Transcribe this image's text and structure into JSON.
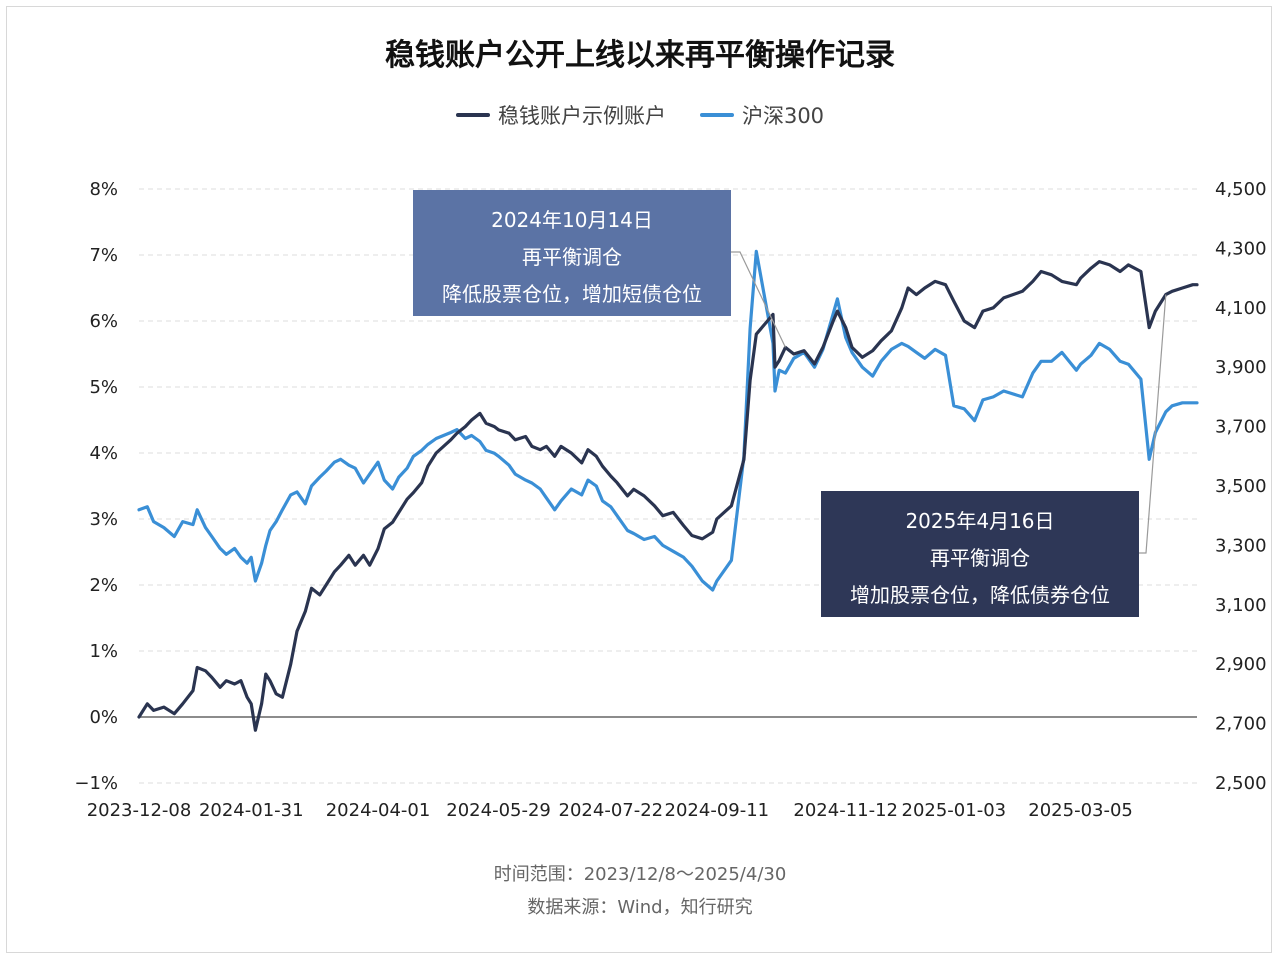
{
  "title": "稳钱账户公开上线以来再平衡操作记录",
  "footer": {
    "range": "时间范围：2023/12/8～2025/4/30",
    "source": "数据来源：Wind，知行研究"
  },
  "colors": {
    "account": "#2a3450",
    "csi300": "#3a8fd6",
    "callout1": "#5b73a5",
    "callout2": "#2e3757"
  },
  "annotations": [
    {
      "date": "2024年10月14日",
      "title": "再平衡调仓",
      "detail": "降低股票仓位，增加短债仓位"
    },
    {
      "date": "2025年4月16日",
      "title": "再平衡调仓",
      "detail": "增加股票仓位，降低债券仓位"
    }
  ],
  "chart_data": {
    "type": "line",
    "x_ticks": [
      "2023-12-08",
      "2024-01-31",
      "2024-04-01",
      "2024-05-29",
      "2024-07-22",
      "2024-09-11",
      "2024-11-12",
      "2025-01-03",
      "2025-03-05"
    ],
    "y_left_ticks": [
      "8%",
      "7%",
      "6%",
      "5%",
      "4%",
      "3%",
      "2%",
      "1%",
      "0%",
      "−1%"
    ],
    "y_right_ticks": [
      "4,500",
      "4,300",
      "4,100",
      "3,900",
      "3,700",
      "3,500",
      "3,300",
      "3,100",
      "2,900",
      "2,700",
      "2,500"
    ],
    "y_left_range": [
      -1,
      8
    ],
    "y_right_range": [
      2500,
      4500
    ],
    "grid": true,
    "legend_position": "top-center",
    "series": [
      {
        "name": "稳钱账户示例账户",
        "axis": "left",
        "unit": "%",
        "points": [
          [
            "2023-12-08",
            0.0
          ],
          [
            "2023-12-12",
            0.2
          ],
          [
            "2023-12-15",
            0.1
          ],
          [
            "2023-12-20",
            0.15
          ],
          [
            "2023-12-25",
            0.05
          ],
          [
            "2023-12-29",
            0.2
          ],
          [
            "2024-01-03",
            0.4
          ],
          [
            "2024-01-05",
            0.75
          ],
          [
            "2024-01-09",
            0.7
          ],
          [
            "2024-01-12",
            0.6
          ],
          [
            "2024-01-16",
            0.45
          ],
          [
            "2024-01-19",
            0.55
          ],
          [
            "2024-01-23",
            0.5
          ],
          [
            "2024-01-26",
            0.55
          ],
          [
            "2024-01-29",
            0.3
          ],
          [
            "2024-01-31",
            0.2
          ],
          [
            "2024-02-02",
            -0.2
          ],
          [
            "2024-02-05",
            0.2
          ],
          [
            "2024-02-07",
            0.65
          ],
          [
            "2024-02-09",
            0.55
          ],
          [
            "2024-02-12",
            0.35
          ],
          [
            "2024-02-15",
            0.3
          ],
          [
            "2024-02-19",
            0.8
          ],
          [
            "2024-02-22",
            1.3
          ],
          [
            "2024-02-26",
            1.6
          ],
          [
            "2024-02-29",
            1.95
          ],
          [
            "2024-03-04",
            1.85
          ],
          [
            "2024-03-07",
            2.0
          ],
          [
            "2024-03-11",
            2.2
          ],
          [
            "2024-03-14",
            2.3
          ],
          [
            "2024-03-18",
            2.45
          ],
          [
            "2024-03-21",
            2.3
          ],
          [
            "2024-03-25",
            2.45
          ],
          [
            "2024-03-28",
            2.3
          ],
          [
            "2024-04-01",
            2.55
          ],
          [
            "2024-04-04",
            2.85
          ],
          [
            "2024-04-08",
            2.95
          ],
          [
            "2024-04-11",
            3.1
          ],
          [
            "2024-04-15",
            3.3
          ],
          [
            "2024-04-18",
            3.4
          ],
          [
            "2024-04-22",
            3.55
          ],
          [
            "2024-04-25",
            3.8
          ],
          [
            "2024-04-29",
            4.0
          ],
          [
            "2024-05-06",
            4.2
          ],
          [
            "2024-05-09",
            4.3
          ],
          [
            "2024-05-13",
            4.4
          ],
          [
            "2024-05-16",
            4.5
          ],
          [
            "2024-05-20",
            4.6
          ],
          [
            "2024-05-23",
            4.45
          ],
          [
            "2024-05-27",
            4.4
          ],
          [
            "2024-05-29",
            4.35
          ],
          [
            "2024-06-03",
            4.3
          ],
          [
            "2024-06-06",
            4.2
          ],
          [
            "2024-06-11",
            4.25
          ],
          [
            "2024-06-14",
            4.1
          ],
          [
            "2024-06-18",
            4.05
          ],
          [
            "2024-06-21",
            4.1
          ],
          [
            "2024-06-25",
            3.95
          ],
          [
            "2024-06-28",
            4.1
          ],
          [
            "2024-07-03",
            4.0
          ],
          [
            "2024-07-08",
            3.85
          ],
          [
            "2024-07-11",
            4.05
          ],
          [
            "2024-07-15",
            3.95
          ],
          [
            "2024-07-18",
            3.8
          ],
          [
            "2024-07-22",
            3.65
          ],
          [
            "2024-07-25",
            3.55
          ],
          [
            "2024-07-30",
            3.35
          ],
          [
            "2024-08-02",
            3.45
          ],
          [
            "2024-08-07",
            3.35
          ],
          [
            "2024-08-12",
            3.2
          ],
          [
            "2024-08-16",
            3.05
          ],
          [
            "2024-08-21",
            3.1
          ],
          [
            "2024-08-26",
            2.9
          ],
          [
            "2024-08-30",
            2.75
          ],
          [
            "2024-09-04",
            2.7
          ],
          [
            "2024-09-09",
            2.8
          ],
          [
            "2024-09-11",
            3.0
          ],
          [
            "2024-09-18",
            3.2
          ],
          [
            "2024-09-24",
            3.9
          ],
          [
            "2024-09-27",
            5.1
          ],
          [
            "2024-09-30",
            5.8
          ],
          [
            "2024-10-08",
            6.1
          ],
          [
            "2024-10-09",
            5.3
          ],
          [
            "2024-10-11",
            5.4
          ],
          [
            "2024-10-14",
            5.6
          ],
          [
            "2024-10-18",
            5.5
          ],
          [
            "2024-10-23",
            5.55
          ],
          [
            "2024-10-28",
            5.35
          ],
          [
            "2024-11-01",
            5.6
          ],
          [
            "2024-11-06",
            6.0
          ],
          [
            "2024-11-08",
            6.15
          ],
          [
            "2024-11-12",
            5.9
          ],
          [
            "2024-11-15",
            5.6
          ],
          [
            "2024-11-20",
            5.45
          ],
          [
            "2024-11-25",
            5.55
          ],
          [
            "2024-11-29",
            5.7
          ],
          [
            "2024-12-04",
            5.85
          ],
          [
            "2024-12-09",
            6.2
          ],
          [
            "2024-12-12",
            6.5
          ],
          [
            "2024-12-16",
            6.4
          ],
          [
            "2024-12-20",
            6.5
          ],
          [
            "2024-12-25",
            6.6
          ],
          [
            "2024-12-30",
            6.55
          ],
          [
            "2025-01-03",
            6.3
          ],
          [
            "2025-01-08",
            6.0
          ],
          [
            "2025-01-13",
            5.9
          ],
          [
            "2025-01-17",
            6.15
          ],
          [
            "2025-01-22",
            6.2
          ],
          [
            "2025-01-27",
            6.35
          ],
          [
            "2025-02-05",
            6.45
          ],
          [
            "2025-02-10",
            6.6
          ],
          [
            "2025-02-14",
            6.75
          ],
          [
            "2025-02-19",
            6.7
          ],
          [
            "2025-02-24",
            6.6
          ],
          [
            "2025-03-03",
            6.55
          ],
          [
            "2025-03-05",
            6.65
          ],
          [
            "2025-03-10",
            6.8
          ],
          [
            "2025-03-14",
            6.9
          ],
          [
            "2025-03-19",
            6.85
          ],
          [
            "2025-03-24",
            6.75
          ],
          [
            "2025-03-28",
            6.85
          ],
          [
            "2025-04-03",
            6.75
          ],
          [
            "2025-04-07",
            5.9
          ],
          [
            "2025-04-10",
            6.15
          ],
          [
            "2025-04-15",
            6.4
          ],
          [
            "2025-04-18",
            6.45
          ],
          [
            "2025-04-23",
            6.5
          ],
          [
            "2025-04-28",
            6.55
          ],
          [
            "2025-04-30",
            6.55
          ]
        ]
      },
      {
        "name": "沪深300",
        "axis": "right",
        "unit": "index",
        "points": [
          [
            "2023-12-08",
            3420
          ],
          [
            "2023-12-12",
            3430
          ],
          [
            "2023-12-15",
            3380
          ],
          [
            "2023-12-20",
            3360
          ],
          [
            "2023-12-25",
            3330
          ],
          [
            "2023-12-29",
            3380
          ],
          [
            "2024-01-03",
            3370
          ],
          [
            "2024-01-05",
            3420
          ],
          [
            "2024-01-09",
            3360
          ],
          [
            "2024-01-12",
            3330
          ],
          [
            "2024-01-16",
            3290
          ],
          [
            "2024-01-19",
            3270
          ],
          [
            "2024-01-23",
            3290
          ],
          [
            "2024-01-26",
            3260
          ],
          [
            "2024-01-29",
            3240
          ],
          [
            "2024-01-31",
            3260
          ],
          [
            "2024-02-02",
            3180
          ],
          [
            "2024-02-05",
            3240
          ],
          [
            "2024-02-07",
            3300
          ],
          [
            "2024-02-09",
            3350
          ],
          [
            "2024-02-12",
            3380
          ],
          [
            "2024-02-15",
            3420
          ],
          [
            "2024-02-19",
            3470
          ],
          [
            "2024-02-22",
            3480
          ],
          [
            "2024-02-26",
            3440
          ],
          [
            "2024-02-29",
            3500
          ],
          [
            "2024-03-04",
            3530
          ],
          [
            "2024-03-07",
            3550
          ],
          [
            "2024-03-11",
            3580
          ],
          [
            "2024-03-14",
            3590
          ],
          [
            "2024-03-18",
            3570
          ],
          [
            "2024-03-21",
            3560
          ],
          [
            "2024-03-25",
            3510
          ],
          [
            "2024-03-28",
            3540
          ],
          [
            "2024-04-01",
            3580
          ],
          [
            "2024-04-04",
            3520
          ],
          [
            "2024-04-08",
            3490
          ],
          [
            "2024-04-11",
            3530
          ],
          [
            "2024-04-15",
            3560
          ],
          [
            "2024-04-18",
            3600
          ],
          [
            "2024-04-22",
            3620
          ],
          [
            "2024-04-25",
            3640
          ],
          [
            "2024-04-29",
            3660
          ],
          [
            "2024-05-06",
            3680
          ],
          [
            "2024-05-09",
            3690
          ],
          [
            "2024-05-13",
            3660
          ],
          [
            "2024-05-16",
            3670
          ],
          [
            "2024-05-20",
            3650
          ],
          [
            "2024-05-23",
            3620
          ],
          [
            "2024-05-27",
            3610
          ],
          [
            "2024-05-29",
            3600
          ],
          [
            "2024-06-03",
            3570
          ],
          [
            "2024-06-06",
            3540
          ],
          [
            "2024-06-11",
            3520
          ],
          [
            "2024-06-14",
            3510
          ],
          [
            "2024-06-18",
            3490
          ],
          [
            "2024-06-21",
            3460
          ],
          [
            "2024-06-25",
            3420
          ],
          [
            "2024-06-28",
            3450
          ],
          [
            "2024-07-03",
            3490
          ],
          [
            "2024-07-08",
            3470
          ],
          [
            "2024-07-11",
            3520
          ],
          [
            "2024-07-15",
            3500
          ],
          [
            "2024-07-18",
            3450
          ],
          [
            "2024-07-22",
            3430
          ],
          [
            "2024-07-25",
            3400
          ],
          [
            "2024-07-30",
            3350
          ],
          [
            "2024-08-02",
            3340
          ],
          [
            "2024-08-07",
            3320
          ],
          [
            "2024-08-12",
            3330
          ],
          [
            "2024-08-16",
            3300
          ],
          [
            "2024-08-21",
            3280
          ],
          [
            "2024-08-26",
            3260
          ],
          [
            "2024-08-30",
            3230
          ],
          [
            "2024-09-04",
            3180
          ],
          [
            "2024-09-09",
            3150
          ],
          [
            "2024-09-11",
            3180
          ],
          [
            "2024-09-18",
            3250
          ],
          [
            "2024-09-24",
            3600
          ],
          [
            "2024-09-27",
            4030
          ],
          [
            "2024-09-30",
            4290
          ],
          [
            "2024-10-08",
            3980
          ],
          [
            "2024-10-09",
            3820
          ],
          [
            "2024-10-11",
            3890
          ],
          [
            "2024-10-14",
            3880
          ],
          [
            "2024-10-18",
            3930
          ],
          [
            "2024-10-23",
            3950
          ],
          [
            "2024-10-28",
            3900
          ],
          [
            "2024-11-01",
            3960
          ],
          [
            "2024-11-06",
            4080
          ],
          [
            "2024-11-08",
            4130
          ],
          [
            "2024-11-12",
            4000
          ],
          [
            "2024-11-15",
            3950
          ],
          [
            "2024-11-20",
            3900
          ],
          [
            "2024-11-25",
            3870
          ],
          [
            "2024-11-29",
            3920
          ],
          [
            "2024-12-04",
            3960
          ],
          [
            "2024-12-09",
            3980
          ],
          [
            "2024-12-12",
            3970
          ],
          [
            "2024-12-16",
            3950
          ],
          [
            "2024-12-20",
            3930
          ],
          [
            "2024-12-25",
            3960
          ],
          [
            "2024-12-30",
            3940
          ],
          [
            "2025-01-03",
            3770
          ],
          [
            "2025-01-08",
            3760
          ],
          [
            "2025-01-13",
            3720
          ],
          [
            "2025-01-17",
            3790
          ],
          [
            "2025-01-22",
            3800
          ],
          [
            "2025-01-27",
            3820
          ],
          [
            "2025-02-05",
            3800
          ],
          [
            "2025-02-10",
            3880
          ],
          [
            "2025-02-14",
            3920
          ],
          [
            "2025-02-19",
            3920
          ],
          [
            "2025-02-24",
            3950
          ],
          [
            "2025-03-03",
            3890
          ],
          [
            "2025-03-05",
            3910
          ],
          [
            "2025-03-10",
            3940
          ],
          [
            "2025-03-14",
            3980
          ],
          [
            "2025-03-19",
            3960
          ],
          [
            "2025-03-24",
            3920
          ],
          [
            "2025-03-28",
            3910
          ],
          [
            "2025-04-03",
            3860
          ],
          [
            "2025-04-07",
            3590
          ],
          [
            "2025-04-10",
            3680
          ],
          [
            "2025-04-15",
            3750
          ],
          [
            "2025-04-18",
            3770
          ],
          [
            "2025-04-23",
            3780
          ],
          [
            "2025-04-28",
            3780
          ],
          [
            "2025-04-30",
            3780
          ]
        ]
      }
    ]
  }
}
